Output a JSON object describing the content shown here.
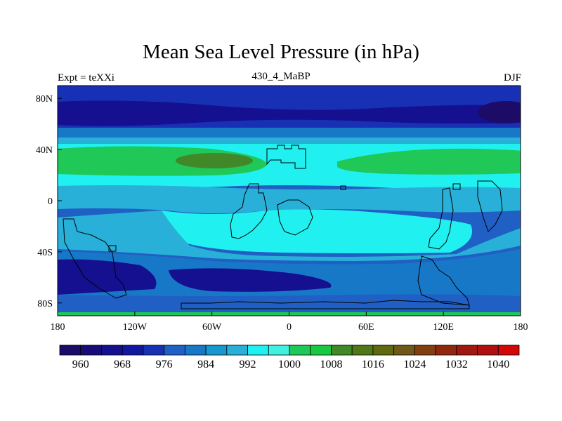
{
  "title": "Mean Sea Level Pressure (in hPa)",
  "left_label": "Expt = teXXi",
  "center_label": "430_4_MaBP",
  "right_label": "DJF",
  "axes": {
    "lon_ticks": [
      {
        "value": -180,
        "label": "180"
      },
      {
        "value": -120,
        "label": "120W"
      },
      {
        "value": -60,
        "label": "60W"
      },
      {
        "value": 0,
        "label": "0"
      },
      {
        "value": 60,
        "label": "60E"
      },
      {
        "value": 120,
        "label": "120E"
      },
      {
        "value": 180,
        "label": "180"
      }
    ],
    "lat_ticks": [
      {
        "value": 80,
        "label": "80N"
      },
      {
        "value": 40,
        "label": "40N"
      },
      {
        "value": 0,
        "label": "0"
      },
      {
        "value": -40,
        "label": "40S"
      },
      {
        "value": -80,
        "label": "80S"
      }
    ]
  },
  "colorbar": {
    "colors": [
      "#1c0c68",
      "#180c78",
      "#141090",
      "#1018a0",
      "#1830b4",
      "#2060c4",
      "#1878c8",
      "#1898d0",
      "#28b0d8",
      "#20f0f0",
      "#40f0e0",
      "#20c858",
      "#18c840",
      "#408828",
      "#507818",
      "#606810",
      "#705818",
      "#804010",
      "#902810",
      "#a01810",
      "#b01010",
      "#d00808"
    ],
    "labels": [
      "960",
      "968",
      "976",
      "984",
      "992",
      "1000",
      "1008",
      "1016",
      "1024",
      "1032",
      "1040"
    ]
  },
  "palette": {
    "ocean_land_outline": "#000000",
    "very_low": "#1c0c68",
    "low": "#141090",
    "mid_low": "#1830b4",
    "mid": "#2060c4",
    "blue_light": "#28b0d8",
    "cyan": "#20f0f0",
    "green": "#20c858",
    "olive": "#408828"
  }
}
